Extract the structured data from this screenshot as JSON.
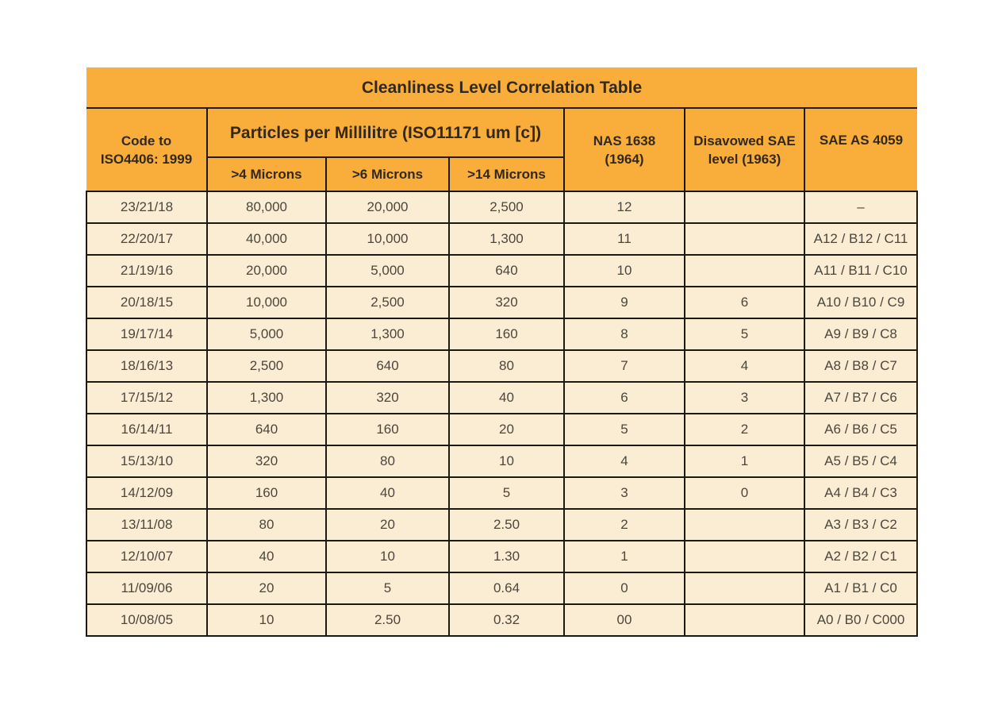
{
  "table": {
    "title": "Cleanliness Level Correlation Table",
    "header": {
      "code_line1": "Code to",
      "code_line2": "ISO4406: 1999",
      "particles_group": "Particles per Millilitre (ISO11171 um [c])",
      "sub_micron_4": ">4 Microns",
      "sub_micron_6": ">6 Microns",
      "sub_micron_14": ">14 Microns",
      "nas_line1": "NAS 1638",
      "nas_line2": "(1964)",
      "disavowed_line1": "Disavowed SAE",
      "disavowed_line2": "level (1963)",
      "sae_as": "SAE AS 4059"
    },
    "colors": {
      "header_bg": "#F9AD3B",
      "row_bg": "#FAEDD4",
      "border": "#1D1A14",
      "header_text": "#33291A",
      "body_text": "#4B463E",
      "page_bg": "#FFFFFF"
    }
  },
  "chart_data": {
    "type": "table",
    "title": "Cleanliness Level Correlation Table",
    "columns": [
      "Code to ISO4406: 1999",
      ">4 Microns",
      ">6 Microns",
      ">14 Microns",
      "NAS 1638 (1964)",
      "Disavowed SAE level (1963)",
      "SAE AS 4059"
    ],
    "rows": [
      [
        "23/21/18",
        "80,000",
        "20,000",
        "2,500",
        "12",
        "",
        "–"
      ],
      [
        "22/20/17",
        "40,000",
        "10,000",
        "1,300",
        "11",
        "",
        "A12 / B12 / C11"
      ],
      [
        "21/19/16",
        "20,000",
        "5,000",
        "640",
        "10",
        "",
        "A11 / B11 / C10"
      ],
      [
        "20/18/15",
        "10,000",
        "2,500",
        "320",
        "9",
        "6",
        "A10 / B10 / C9"
      ],
      [
        "19/17/14",
        "5,000",
        "1,300",
        "160",
        "8",
        "5",
        "A9 / B9 / C8"
      ],
      [
        "18/16/13",
        "2,500",
        "640",
        "80",
        "7",
        "4",
        "A8 / B8 / C7"
      ],
      [
        "17/15/12",
        "1,300",
        "320",
        "40",
        "6",
        "3",
        "A7 / B7 / C6"
      ],
      [
        "16/14/11",
        "640",
        "160",
        "20",
        "5",
        "2",
        "A6 / B6 / C5"
      ],
      [
        "15/13/10",
        "320",
        "80",
        "10",
        "4",
        "1",
        "A5 / B5 / C4"
      ],
      [
        "14/12/09",
        "160",
        "40",
        "5",
        "3",
        "0",
        "A4 / B4 / C3"
      ],
      [
        "13/11/08",
        "80",
        "20",
        "2.50",
        "2",
        "",
        "A3 / B3 / C2"
      ],
      [
        "12/10/07",
        "40",
        "10",
        "1.30",
        "1",
        "",
        "A2 / B2 / C1"
      ],
      [
        "11/09/06",
        "20",
        "5",
        "0.64",
        "0",
        "",
        "A1 / B1 / C0"
      ],
      [
        "10/08/05",
        "10",
        "2.50",
        "0.32",
        "00",
        "",
        "A0 / B0 / C000"
      ]
    ]
  }
}
